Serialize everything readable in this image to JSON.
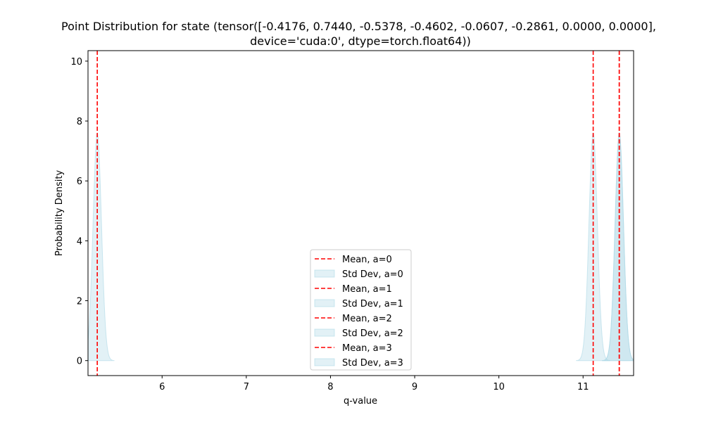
{
  "chart_data": {
    "type": "line",
    "title_lines": [
      "Point Distribution for state (tensor([-0.4176,  0.7440, -0.5378, -0.4602, -0.0607, -0.2861,  0.0000,  0.0000],",
      "device='cuda:0', dtype=torch.float64))"
    ],
    "xlabel": "q-value",
    "ylabel": "Probability Density",
    "xlim": [
      5.12,
      11.6
    ],
    "ylim": [
      -0.5,
      10.35
    ],
    "x_ticks": [
      6,
      7,
      8,
      9,
      10,
      11
    ],
    "y_ticks": [
      0,
      2,
      4,
      6,
      8,
      10
    ],
    "grid": false,
    "legend_placement": "lower center",
    "colors": {
      "mean": "#ff0000",
      "std_fill": "#add8e6",
      "axes": "#000000"
    },
    "series": [
      {
        "action": 0,
        "mean": 5.23,
        "std": 0.05,
        "peak": 7.6
      },
      {
        "action": 1,
        "mean": 11.43,
        "std": 0.05,
        "peak": 7.6
      },
      {
        "action": 2,
        "mean": 11.12,
        "std": 0.05,
        "peak": 7.6
      },
      {
        "action": 3,
        "mean": 11.43,
        "std": 0.05,
        "peak": 7.6
      }
    ],
    "legend": [
      {
        "label": "Mean, a=0",
        "kind": "line"
      },
      {
        "label": "Std Dev, a=0",
        "kind": "patch"
      },
      {
        "label": "Mean, a=1",
        "kind": "line"
      },
      {
        "label": "Std Dev, a=1",
        "kind": "patch"
      },
      {
        "label": "Mean, a=2",
        "kind": "line"
      },
      {
        "label": "Std Dev, a=2",
        "kind": "patch"
      },
      {
        "label": "Mean, a=3",
        "kind": "line"
      },
      {
        "label": "Std Dev, a=3",
        "kind": "patch"
      }
    ]
  }
}
